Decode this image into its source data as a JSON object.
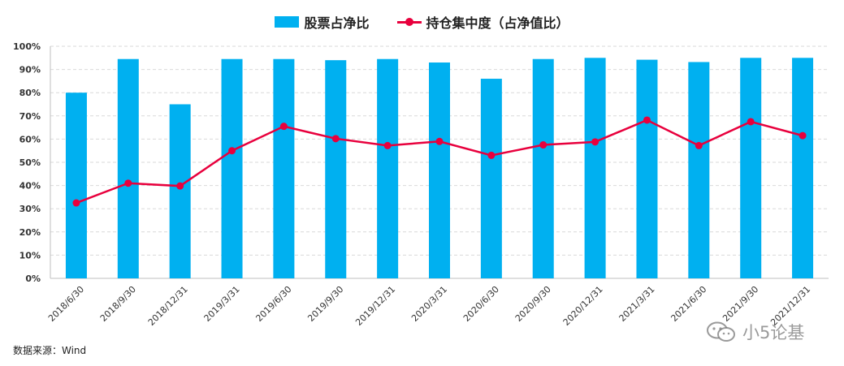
{
  "legend": {
    "bar_label": "股票占净比",
    "line_label": "持仓集中度（占净值比）"
  },
  "source": "数据来源：Wind",
  "watermark": "小5论基",
  "colors": {
    "bar": "#00b0f0",
    "line": "#e8003d",
    "grid": "#d9d9d9"
  },
  "chart_data": {
    "type": "bar+line",
    "categories": [
      "2018/6/30",
      "2018/9/30",
      "2018/12/31",
      "2019/3/31",
      "2019/6/30",
      "2019/9/30",
      "2019/12/31",
      "2020/3/31",
      "2020/6/30",
      "2020/9/30",
      "2020/12/31",
      "2021/3/31",
      "2021/6/30",
      "2021/9/30",
      "2021/12/31"
    ],
    "series": [
      {
        "name": "股票占净比",
        "type": "bar",
        "values": [
          80,
          94.5,
          75,
          94.5,
          94.5,
          94,
          94.5,
          93,
          86,
          94.5,
          95,
          94.2,
          93.2,
          95,
          95
        ]
      },
      {
        "name": "持仓集中度（占净值比）",
        "type": "line",
        "values": [
          32.5,
          41,
          39.8,
          55,
          65.5,
          60.2,
          57.2,
          59,
          53,
          57.5,
          58.8,
          68.2,
          57.2,
          67.5,
          61.5
        ]
      }
    ],
    "yticks": [
      "0%",
      "10%",
      "20%",
      "30%",
      "40%",
      "50%",
      "60%",
      "70%",
      "80%",
      "90%",
      "100%"
    ],
    "ylim": [
      0,
      100
    ],
    "grid": true,
    "legend_position": "top-center"
  }
}
